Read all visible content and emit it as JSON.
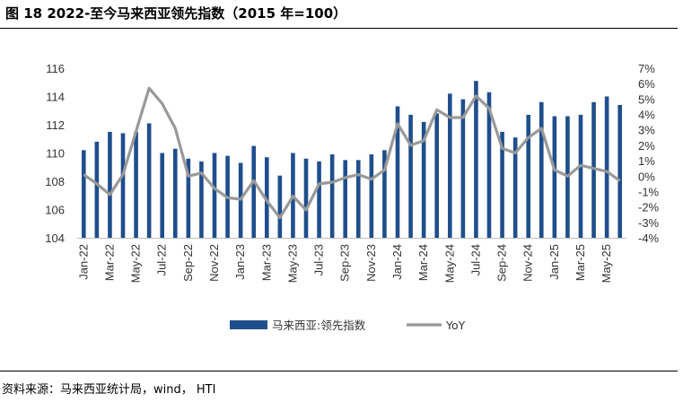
{
  "figure": {
    "title": "图 18 2022-至今马来西亚领先指数（2015 年=100）",
    "source": "资料来源：马来西亚统计局，wind， HTI"
  },
  "colors": {
    "bars": "#1f4e8c",
    "line": "#999999"
  },
  "chart_data": {
    "type": "bar",
    "x": [
      "Jan-22",
      "Feb-22",
      "Mar-22",
      "Apr-22",
      "May-22",
      "Jun-22",
      "Jul-22",
      "Aug-22",
      "Sep-22",
      "Oct-22",
      "Nov-22",
      "Dec-22",
      "Jan-23",
      "Feb-23",
      "Mar-23",
      "Apr-23",
      "May-23",
      "Jun-23",
      "Jul-23",
      "Aug-23",
      "Sep-23",
      "Oct-23",
      "Nov-23",
      "Dec-23",
      "Jan-24",
      "Feb-24",
      "Mar-24",
      "Apr-24",
      "May-24",
      "Jun-24",
      "Jul-24",
      "Aug-24",
      "Sep-24",
      "Oct-24",
      "Nov-24",
      "Dec-24",
      "Jan-25",
      "Feb-25",
      "Mar-25",
      "Apr-25",
      "May-25",
      "Jun-25"
    ],
    "x_tick_labels": [
      "Jan-22",
      "Mar-22",
      "May-22",
      "Jul-22",
      "Sep-22",
      "Nov-22",
      "Jan-23",
      "Mar-23",
      "May-23",
      "Jul-23",
      "Sep-23",
      "Nov-23",
      "Jan-24",
      "Mar-24",
      "May-24",
      "Jul-24",
      "Sep-24",
      "Nov-24",
      "Jan-25",
      "Mar-25",
      "May-25"
    ],
    "series": [
      {
        "name": "马来西亚:领先指数",
        "type": "bar",
        "axis": "left",
        "values": [
          110.2,
          110.8,
          111.5,
          111.4,
          111.5,
          112.1,
          110.0,
          110.3,
          109.6,
          109.4,
          110.0,
          109.8,
          109.3,
          110.5,
          109.7,
          108.4,
          110.0,
          109.6,
          109.4,
          109.9,
          109.5,
          109.5,
          109.9,
          110.2,
          113.3,
          112.7,
          112.2,
          112.8,
          114.2,
          113.8,
          115.1,
          114.3,
          111.5,
          111.1,
          112.7,
          113.6,
          112.6,
          112.6,
          112.7,
          113.6,
          114.0,
          113.4
        ]
      },
      {
        "name": "YoY",
        "type": "line",
        "axis": "right",
        "unit": "%",
        "values": [
          0.1,
          -0.5,
          -1.2,
          0.1,
          2.9,
          5.7,
          4.7,
          3.1,
          0.0,
          0.2,
          -0.8,
          -1.4,
          -1.5,
          -0.3,
          -1.6,
          -2.7,
          -1.3,
          -2.2,
          -0.5,
          -0.4,
          -0.1,
          0.1,
          -0.2,
          0.4,
          3.4,
          2.0,
          2.3,
          4.3,
          3.8,
          3.8,
          5.2,
          4.4,
          1.8,
          1.5,
          2.5,
          3.1,
          0.4,
          0.0,
          0.7,
          0.5,
          0.3,
          -0.3
        ]
      }
    ],
    "y_left": {
      "min": 104,
      "max": 116,
      "ticks": [
        "104",
        "106",
        "108",
        "110",
        "112",
        "114",
        "116"
      ]
    },
    "y_right": {
      "min": -4,
      "max": 7,
      "ticks": [
        "-4%",
        "-3%",
        "-2%",
        "-1%",
        "0%",
        "1%",
        "2%",
        "3%",
        "4%",
        "5%",
        "6%",
        "7%"
      ]
    },
    "grid": false,
    "legend": {
      "position": "bottom"
    }
  }
}
